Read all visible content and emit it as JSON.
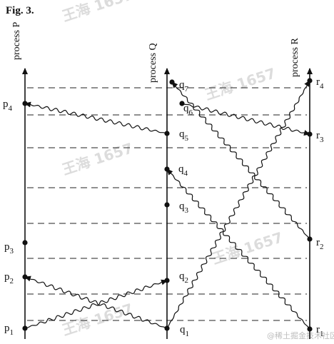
{
  "figure_label": "Fig. 3.",
  "processes": [
    {
      "id": "P",
      "label": "process P"
    },
    {
      "id": "Q",
      "label": "process Q"
    },
    {
      "id": "R",
      "label": "process R"
    }
  ],
  "events": {
    "P": [
      "p1",
      "p2",
      "p3",
      "p4"
    ],
    "Q": [
      "q1",
      "q2",
      "q3",
      "q4",
      "q5",
      "q6",
      "q7"
    ],
    "R": [
      "r1",
      "r2",
      "r3",
      "r4"
    ]
  },
  "messages": [
    {
      "from": "p1",
      "to": "q2"
    },
    {
      "from": "q1",
      "to": "p2"
    },
    {
      "from": "q1",
      "to": "r4"
    },
    {
      "from": "r1",
      "to": "q4"
    },
    {
      "from": "q6",
      "to": "r3"
    },
    {
      "from": "r2",
      "to": "q7"
    },
    {
      "from": "q5",
      "to": "p4"
    }
  ],
  "watermark": {
    "text": "王海 1657",
    "site": "@稀土掘金技术社区"
  },
  "colors": {
    "ink": "#111111",
    "watermark": "#dcdcdc"
  }
}
